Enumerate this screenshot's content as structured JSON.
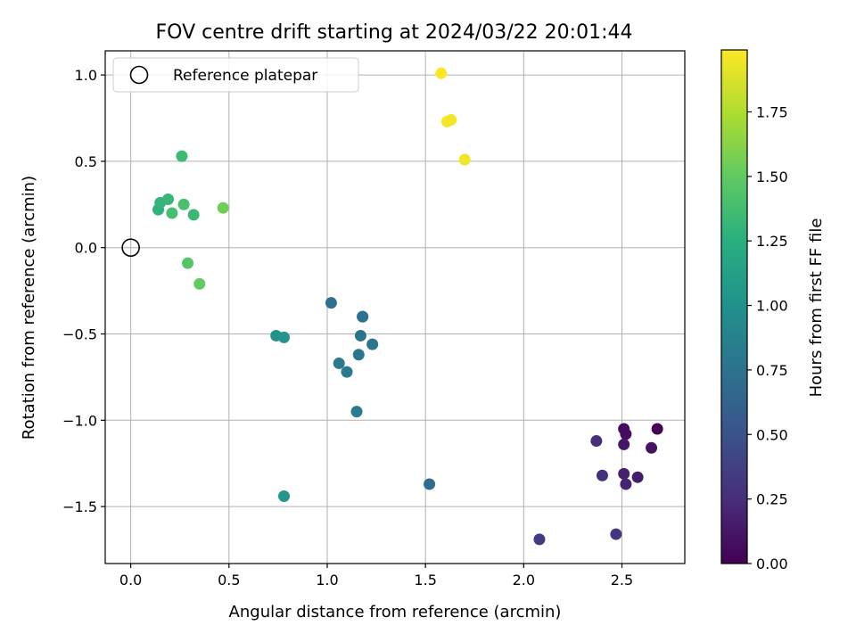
{
  "chart_data": {
    "type": "scatter",
    "title": "FOV centre drift starting at 2024/03/22 20:01:44",
    "xlabel": "Angular distance from reference (arcmin)",
    "ylabel": "Rotation from reference (arcmin)",
    "xlim": [
      -0.13,
      2.82
    ],
    "ylim": [
      -1.83,
      1.14
    ],
    "x_ticks": [
      0.0,
      0.5,
      1.0,
      1.5,
      2.0,
      2.5
    ],
    "x_tick_labels": [
      "0.0",
      "0.5",
      "1.0",
      "1.5",
      "2.0",
      "2.5"
    ],
    "y_ticks": [
      1.0,
      0.5,
      0.0,
      -0.5,
      -1.0,
      -1.5
    ],
    "y_tick_labels": [
      "1.0",
      "0.5",
      "0.0",
      "−0.5",
      "−1.0",
      "−1.5"
    ],
    "grid": true,
    "legend": {
      "position": "top-left",
      "entries": [
        "Reference platepar"
      ]
    },
    "reference_point": {
      "x": 0.0,
      "y": 0.0,
      "marker": "open-circle"
    },
    "colorbar": {
      "label": "Hours from first FF file",
      "range": [
        0.0,
        1.99
      ],
      "colormap": "viridis",
      "ticks": [
        0.0,
        0.25,
        0.5,
        0.75,
        1.0,
        1.25,
        1.5,
        1.75
      ],
      "tick_labels": [
        "0.00",
        "0.25",
        "0.50",
        "0.75",
        "1.00",
        "1.25",
        "1.50",
        "1.75"
      ]
    },
    "points": [
      {
        "x": 2.68,
        "y": -1.05,
        "c": 0.0
      },
      {
        "x": 2.51,
        "y": -1.05,
        "c": 0.05
      },
      {
        "x": 2.52,
        "y": -1.08,
        "c": 0.07
      },
      {
        "x": 2.65,
        "y": -1.16,
        "c": 0.1
      },
      {
        "x": 2.51,
        "y": -1.14,
        "c": 0.12
      },
      {
        "x": 2.58,
        "y": -1.33,
        "c": 0.15
      },
      {
        "x": 2.51,
        "y": -1.31,
        "c": 0.18
      },
      {
        "x": 2.52,
        "y": -1.37,
        "c": 0.2
      },
      {
        "x": 2.37,
        "y": -1.12,
        "c": 0.25
      },
      {
        "x": 2.4,
        "y": -1.32,
        "c": 0.27
      },
      {
        "x": 2.47,
        "y": -1.66,
        "c": 0.3
      },
      {
        "x": 2.08,
        "y": -1.69,
        "c": 0.35
      },
      {
        "x": 1.52,
        "y": -1.37,
        "c": 0.7
      },
      {
        "x": 1.02,
        "y": -0.32,
        "c": 0.72
      },
      {
        "x": 1.18,
        "y": -0.4,
        "c": 0.73
      },
      {
        "x": 1.18,
        "y": -0.4,
        "c": 0.74
      },
      {
        "x": 1.17,
        "y": -0.51,
        "c": 0.76
      },
      {
        "x": 1.23,
        "y": -0.56,
        "c": 0.77
      },
      {
        "x": 1.16,
        "y": -0.62,
        "c": 0.78
      },
      {
        "x": 1.06,
        "y": -0.67,
        "c": 0.8
      },
      {
        "x": 1.1,
        "y": -0.72,
        "c": 0.81
      },
      {
        "x": 1.15,
        "y": -0.95,
        "c": 0.82
      },
      {
        "x": 0.74,
        "y": -0.51,
        "c": 1.0
      },
      {
        "x": 0.78,
        "y": -0.52,
        "c": 1.02
      },
      {
        "x": 0.78,
        "y": -1.44,
        "c": 1.05
      },
      {
        "x": 0.26,
        "y": 0.53,
        "c": 1.35
      },
      {
        "x": 0.14,
        "y": 0.22,
        "c": 1.28
      },
      {
        "x": 0.15,
        "y": 0.26,
        "c": 1.3
      },
      {
        "x": 0.19,
        "y": 0.28,
        "c": 1.32
      },
      {
        "x": 0.21,
        "y": 0.2,
        "c": 1.38
      },
      {
        "x": 0.27,
        "y": 0.25,
        "c": 1.4
      },
      {
        "x": 0.32,
        "y": 0.19,
        "c": 1.33
      },
      {
        "x": 0.29,
        "y": -0.09,
        "c": 1.45
      },
      {
        "x": 0.35,
        "y": -0.21,
        "c": 1.5
      },
      {
        "x": 0.47,
        "y": 0.23,
        "c": 1.55
      },
      {
        "x": 1.58,
        "y": 1.01,
        "c": 1.99
      },
      {
        "x": 1.61,
        "y": 0.73,
        "c": 1.97
      },
      {
        "x": 1.63,
        "y": 0.74,
        "c": 1.96
      },
      {
        "x": 1.7,
        "y": 0.51,
        "c": 1.95
      }
    ]
  }
}
